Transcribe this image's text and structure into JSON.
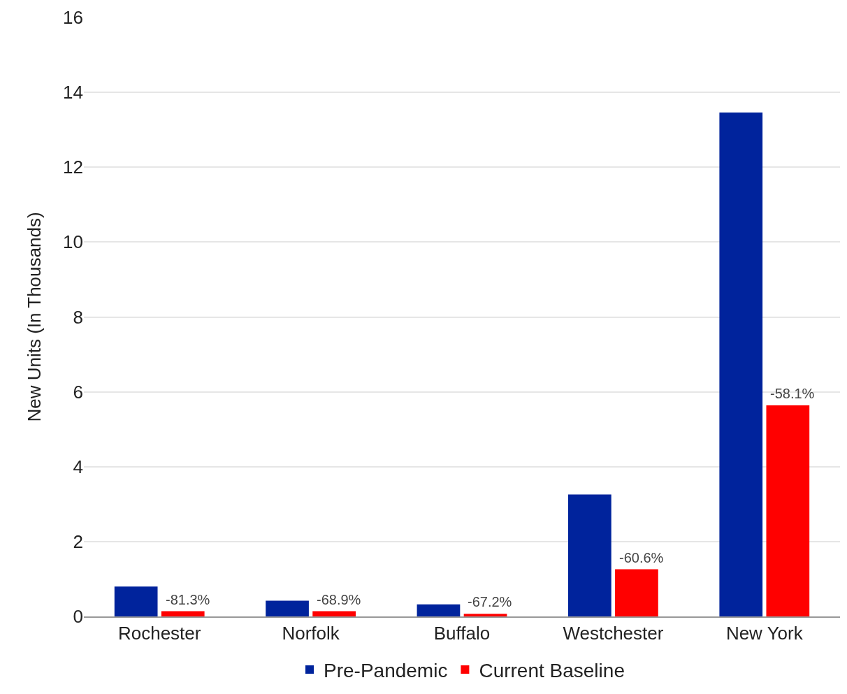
{
  "chart_data": {
    "type": "bar",
    "ylabel": "New Units (In Thousands)",
    "categories": [
      "Rochester",
      "Norfolk",
      "Buffalo",
      "Westchester",
      "New York"
    ],
    "series": [
      {
        "name": "Pre-Pandemic",
        "color": "#00239c",
        "values": [
          0.8,
          0.42,
          0.32,
          3.26,
          13.46
        ]
      },
      {
        "name": "Current Baseline",
        "color": "#ff0000",
        "values": [
          0.14,
          0.14,
          0.07,
          1.26,
          5.64
        ]
      }
    ],
    "annotations": [
      {
        "text": "-81.3%",
        "x": "Rochester",
        "y": 0.14
      },
      {
        "text": "-68.9%",
        "x": "Norfolk",
        "y": 0.14
      },
      {
        "text": "-67.2%",
        "x": "Buffalo",
        "y": 0.07
      },
      {
        "text": "-60.6%",
        "x": "Westchester",
        "y": 1.26
      },
      {
        "text": "-58.1%",
        "x": "New York",
        "y": 5.64
      }
    ],
    "ylim": [
      0,
      16
    ],
    "yticks": [
      0,
      2,
      4,
      6,
      8,
      10,
      12,
      14,
      16
    ],
    "grid": "y",
    "legend": "bottom"
  }
}
